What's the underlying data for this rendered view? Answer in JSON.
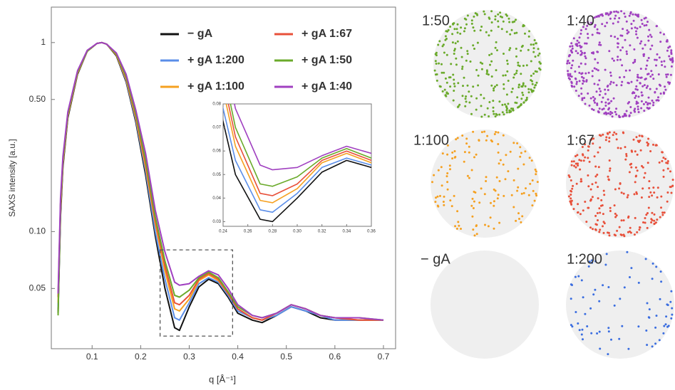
{
  "chart_data": {
    "type": "line",
    "xlabel": "q [Å⁻¹]",
    "ylabel": "SAXS intensity [a.u.]",
    "log_y": true,
    "xlim": [
      0.016,
      0.725
    ],
    "ylim": [
      0.024,
      1.54
    ],
    "xticks": [
      0.1,
      0.2,
      0.3,
      0.4,
      0.5,
      0.6,
      0.7
    ],
    "yticks": [
      0.05,
      {
        "value": 0.1,
        "label": "0.10"
      },
      {
        "value": 0.5,
        "label": "0.50"
      },
      1
    ],
    "legend": "top-right",
    "x": [
      0.03,
      0.035,
      0.04,
      0.05,
      0.07,
      0.09,
      0.11,
      0.12,
      0.13,
      0.15,
      0.17,
      0.19,
      0.21,
      0.23,
      0.25,
      0.27,
      0.28,
      0.3,
      0.32,
      0.34,
      0.36,
      0.38,
      0.4,
      0.43,
      0.45,
      0.48,
      0.51,
      0.54,
      0.57,
      0.6,
      0.65,
      0.7
    ],
    "series": [
      {
        "name": "− gA",
        "color": "#111111",
        "values": [
          0.037,
          0.12,
          0.22,
          0.4,
          0.68,
          0.9,
          0.99,
          1.0,
          0.98,
          0.85,
          0.62,
          0.38,
          0.2,
          0.095,
          0.05,
          0.031,
          0.03,
          0.04,
          0.051,
          0.056,
          0.053,
          0.045,
          0.037,
          0.034,
          0.033,
          0.036,
          0.04,
          0.038,
          0.035,
          0.034,
          0.034,
          0.034
        ]
      },
      {
        "name": "+ gA 1:200",
        "color": "#5a8de8",
        "values": [
          0.04,
          0.13,
          0.23,
          0.41,
          0.69,
          0.9,
          0.99,
          1.0,
          0.98,
          0.86,
          0.63,
          0.39,
          0.21,
          0.1,
          0.056,
          0.035,
          0.034,
          0.042,
          0.053,
          0.057,
          0.054,
          0.046,
          0.038,
          0.035,
          0.034,
          0.036,
          0.04,
          0.038,
          0.036,
          0.034,
          0.034,
          0.034
        ]
      },
      {
        "name": "+ gA 1:100",
        "color": "#f5a020",
        "values": [
          0.042,
          0.13,
          0.23,
          0.41,
          0.69,
          0.9,
          0.99,
          1.0,
          0.98,
          0.86,
          0.64,
          0.4,
          0.22,
          0.11,
          0.062,
          0.039,
          0.038,
          0.044,
          0.055,
          0.059,
          0.055,
          0.047,
          0.039,
          0.035,
          0.034,
          0.037,
          0.041,
          0.039,
          0.036,
          0.035,
          0.034,
          0.034
        ]
      },
      {
        "name": "+ gA 1:67",
        "color": "#e8503a",
        "values": [
          0.045,
          0.14,
          0.24,
          0.42,
          0.7,
          0.9,
          0.99,
          1.0,
          0.98,
          0.87,
          0.65,
          0.41,
          0.23,
          0.115,
          0.066,
          0.042,
          0.041,
          0.046,
          0.056,
          0.06,
          0.056,
          0.047,
          0.039,
          0.035,
          0.034,
          0.037,
          0.041,
          0.039,
          0.036,
          0.035,
          0.034,
          0.034
        ]
      },
      {
        "name": "+ gA 1:50",
        "color": "#6aaa2a",
        "values": [
          0.036,
          0.14,
          0.24,
          0.42,
          0.7,
          0.9,
          0.99,
          1.0,
          0.98,
          0.87,
          0.66,
          0.42,
          0.24,
          0.12,
          0.07,
          0.046,
          0.045,
          0.049,
          0.057,
          0.061,
          0.057,
          0.048,
          0.04,
          0.036,
          0.035,
          0.037,
          0.041,
          0.039,
          0.036,
          0.035,
          0.035,
          0.034
        ]
      },
      {
        "name": "+ gA 1:40",
        "color": "#a040c0",
        "values": [
          0.047,
          0.15,
          0.25,
          0.43,
          0.71,
          0.91,
          0.99,
          1.0,
          0.98,
          0.88,
          0.68,
          0.44,
          0.26,
          0.13,
          0.078,
          0.054,
          0.052,
          0.053,
          0.058,
          0.062,
          0.059,
          0.05,
          0.041,
          0.036,
          0.035,
          0.037,
          0.041,
          0.039,
          0.036,
          0.035,
          0.035,
          0.034
        ]
      }
    ],
    "inset": {
      "xlim": [
        0.24,
        0.36
      ],
      "ylim": [
        0.028,
        0.08
      ],
      "xticks": [
        0.24,
        0.26,
        0.28,
        {
          "value": 0.3,
          "label": "0.30"
        },
        0.32,
        0.34,
        0.36
      ],
      "yticks": [
        0.03,
        0.04,
        0.05,
        0.06,
        0.07,
        0.08
      ]
    }
  },
  "spheres": [
    {
      "label": "1:50",
      "color": "#6aaa2a"
    },
    {
      "label": "1:40",
      "color": "#a040c0"
    },
    {
      "label": "1:100",
      "color": "#f5a020"
    },
    {
      "label": "1:67",
      "color": "#e8503a"
    },
    {
      "label": "− gA",
      "color": "#5a8de8"
    },
    {
      "label": "1:200",
      "color": "#3a6de0"
    }
  ]
}
